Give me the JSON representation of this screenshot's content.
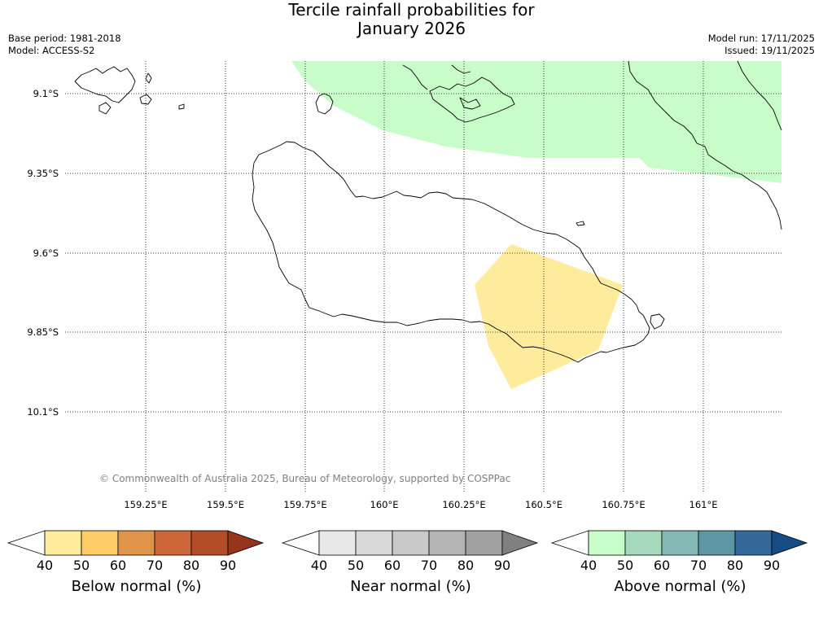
{
  "header": {
    "title_line1": "Tercile rainfall probabilities for",
    "title_line2": "January 2026",
    "base_period": "Base period: 1981-2018",
    "model": "Model: ACCESS-S2",
    "model_run": "Model run: 17/11/2025",
    "issued": "Issued: 19/11/2025"
  },
  "map": {
    "lat_labels": [
      "9.1°S",
      "9.35°S",
      "9.6°S",
      "9.85°S",
      "10.1°S"
    ],
    "lon_labels": [
      "159.25°E",
      "159.5°E",
      "159.75°E",
      "160°E",
      "160.25°E",
      "160.5°E",
      "160.75°E",
      "161°E"
    ],
    "copyright": "© Commonwealth of Australia 2025, Bureau of Meteorology, supported by COSPPac",
    "shaded_regions": [
      {
        "category": "Above normal",
        "probability_band": "40-50",
        "color": "#c8fcc8"
      },
      {
        "category": "Below normal",
        "probability_band": "40-50",
        "color": "#feeb9c"
      }
    ]
  },
  "colorbars": [
    {
      "title": "Below normal (%)",
      "ticks": [
        "40",
        "50",
        "60",
        "70",
        "80",
        "90"
      ],
      "colors": [
        "#ffffff",
        "#feeb9c",
        "#fdcc66",
        "#e0944a",
        "#cd6638",
        "#b34c28",
        "#96341c"
      ]
    },
    {
      "title": "Near normal (%)",
      "ticks": [
        "40",
        "50",
        "60",
        "70",
        "80",
        "90"
      ],
      "colors": [
        "#ffffff",
        "#e8e8e8",
        "#d8d8d8",
        "#c8c8c8",
        "#b4b4b4",
        "#a0a0a0",
        "#808080"
      ]
    },
    {
      "title": "Above normal (%)",
      "ticks": [
        "40",
        "50",
        "60",
        "70",
        "80",
        "90"
      ],
      "colors": [
        "#ffffff",
        "#c8fcc8",
        "#a6d8bc",
        "#84b8b4",
        "#5e96a4",
        "#336898",
        "#164c84"
      ]
    }
  ]
}
